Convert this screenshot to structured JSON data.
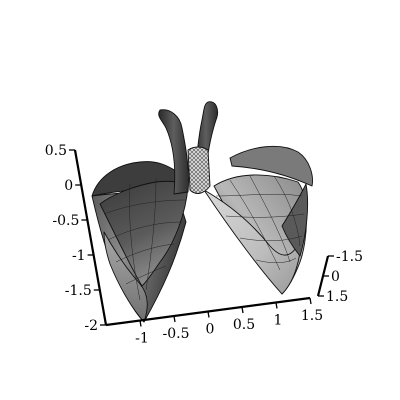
{
  "plot": {
    "type": "3d-surface",
    "grid": true,
    "axes": {
      "x": {
        "range": [
          -1.5,
          1.5
        ],
        "ticks": [
          "-1",
          "-0.5",
          "0",
          "0.5",
          "1",
          "1.5"
        ]
      },
      "y": {
        "range": [
          -1.5,
          1.5
        ],
        "ticks": [
          "-1.5",
          "0",
          "1.5"
        ]
      },
      "z": {
        "range": [
          -2,
          0.5
        ],
        "ticks": [
          "0.5",
          "0",
          "-0.5",
          "-1",
          "-1.5",
          "-2"
        ]
      }
    }
  }
}
